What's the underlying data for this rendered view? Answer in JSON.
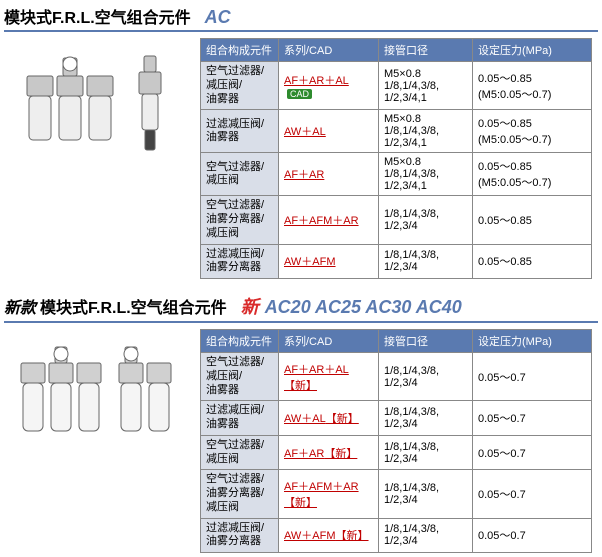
{
  "section1": {
    "title": "模块式F.R.L.空气组合元件",
    "model": "AC",
    "headers": [
      "组合构成元件",
      "系列/CAD",
      "接管口径",
      "设定压力(MPa)"
    ],
    "rows": [
      {
        "comp": "空气过滤器/<br>减压阀/<br>油雾器",
        "series": "AF＋AR＋AL",
        "cad": true,
        "port": "M5×0.8<br>1/8,1/4,3/8,<br>1/2,3/4,1",
        "press": "0.05～0.85<br>(M5:0.05～0.7)"
      },
      {
        "comp": "过滤减压阀/<br>油雾器",
        "series": "AW＋AL",
        "cad": false,
        "port": "M5×0.8<br>1/8,1/4,3/8,<br>1/2,3/4,1",
        "press": "0.05～0.85<br>(M5:0.05～0.7)"
      },
      {
        "comp": "空气过滤器/<br>减压阀",
        "series": "AF＋AR",
        "cad": false,
        "port": "M5×0.8<br>1/8,1/4,3/8,<br>1/2,3/4,1",
        "press": "0.05～0.85<br>(M5:0.05～0.7)"
      },
      {
        "comp": "空气过滤器/<br>油雾分离器/<br>减压阀",
        "series": "AF＋AFM＋AR",
        "cad": false,
        "port": "1/8,1/4,3/8,<br>1/2,3/4",
        "press": "0.05～0.85"
      },
      {
        "comp": "过滤减压阀/<br>油雾分离器",
        "series": "AW＋AFM",
        "cad": false,
        "port": "1/8,1/4,3/8,<br>1/2,3/4",
        "press": "0.05～0.85"
      }
    ]
  },
  "section2": {
    "title_prefix": "新款",
    "title": "模块式F.R.L.空气组合元件",
    "new_label": "新",
    "models": "AC20 AC25 AC30 AC40",
    "headers": [
      "组合构成元件",
      "系列/CAD",
      "接管口径",
      "设定压力(MPa)"
    ],
    "new_tag": "【新】",
    "rows": [
      {
        "comp": "空气过滤器/<br>减压阀/<br>油雾器",
        "series": "AF＋AR＋AL",
        "port": "1/8,1/4,3/8,<br>1/2,3/4",
        "press": "0.05～0.7"
      },
      {
        "comp": "过滤减压阀/<br>油雾器",
        "series": "AW＋AL",
        "port": "1/8,1/4,3/8,<br>1/2,3/4",
        "press": "0.05～0.7"
      },
      {
        "comp": "空气过滤器/<br>减压阀",
        "series": "AF＋AR",
        "port": "1/8,1/4,3/8,<br>1/2,3/4",
        "press": "0.05～0.7"
      },
      {
        "comp": "空气过滤器/<br>油雾分离器/<br>减压阀",
        "series": "AF＋AFM＋AR",
        "port": "1/8,1/4,3/8,<br>1/2,3/4",
        "press": "0.05～0.7"
      },
      {
        "comp": "过滤减压阀/<br>油雾分离器",
        "series": "AW＋AFM",
        "port": "1/8,1/4,3/8,<br>1/2,3/4",
        "press": "0.05～0.7"
      }
    ]
  },
  "cad_label": "CAD",
  "colors": {
    "header_bg": "#5a7ab0",
    "comp_bg": "#d9dee8",
    "link": "#c00000"
  },
  "col_widths": {
    "c1": 78,
    "c2": 100,
    "c3": 94,
    "c4": 120
  }
}
